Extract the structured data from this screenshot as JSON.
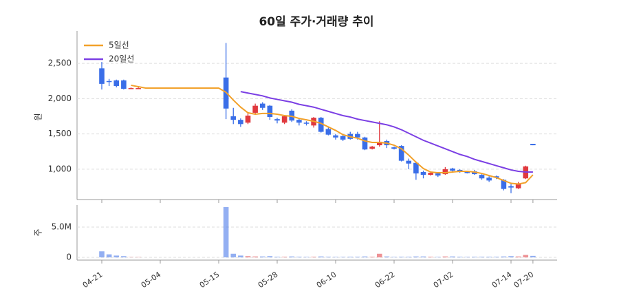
{
  "chart_data": {
    "type": "candlestick",
    "title": "60일 주가·거래량 추이",
    "categories": [
      "04-21",
      null,
      null,
      null,
      null,
      null,
      null,
      null,
      "05-04",
      null,
      null,
      null,
      null,
      null,
      null,
      null,
      "05-15",
      null,
      null,
      null,
      null,
      null,
      null,
      null,
      "05-28",
      null,
      null,
      null,
      null,
      null,
      null,
      null,
      "06-10",
      null,
      null,
      null,
      null,
      null,
      null,
      null,
      "06-22",
      null,
      null,
      null,
      null,
      null,
      null,
      null,
      "07-02",
      null,
      null,
      null,
      null,
      null,
      null,
      null,
      "07-14",
      null,
      null,
      "07-20"
    ],
    "open": [
      2430,
      2250,
      2260,
      2260,
      2150,
      2150,
      null,
      null,
      null,
      null,
      null,
      null,
      null,
      null,
      null,
      null,
      null,
      2300,
      1750,
      1700,
      1660,
      1800,
      1930,
      1900,
      1710,
      1660,
      1830,
      1700,
      1660,
      1620,
      1730,
      1570,
      1480,
      1470,
      1500,
      1500,
      1450,
      1290,
      1340,
      1400,
      1310,
      1330,
      1120,
      1090,
      960,
      920,
      940,
      930,
      1010,
      990,
      960,
      970,
      920,
      880,
      900,
      850,
      760,
      730,
      870,
      1360
    ],
    "high": [
      2520,
      2280,
      2270,
      2270,
      2160,
      2160,
      null,
      null,
      null,
      null,
      null,
      null,
      null,
      null,
      null,
      null,
      null,
      2790,
      1870,
      1720,
      1800,
      1930,
      1950,
      1910,
      1730,
      1760,
      1850,
      1730,
      1680,
      1740,
      1740,
      1600,
      1500,
      1490,
      1530,
      1530,
      1460,
      1330,
      1680,
      1420,
      1320,
      1340,
      1150,
      1110,
      980,
      970,
      960,
      1030,
      1020,
      1000,
      970,
      990,
      930,
      900,
      910,
      860,
      790,
      820,
      1050,
      1360
    ],
    "low": [
      2130,
      2180,
      2160,
      2130,
      2140,
      2140,
      null,
      null,
      null,
      null,
      null,
      null,
      null,
      null,
      null,
      null,
      null,
      1710,
      1640,
      1600,
      1640,
      1780,
      1840,
      1700,
      1650,
      1640,
      1670,
      1620,
      1620,
      1590,
      1520,
      1480,
      1420,
      1400,
      1420,
      1420,
      1270,
      1280,
      1320,
      1300,
      1280,
      1110,
      1000,
      850,
      870,
      910,
      890,
      920,
      950,
      950,
      940,
      920,
      850,
      820,
      860,
      700,
      660,
      720,
      860,
      1340
    ],
    "close": [
      2210,
      2240,
      2180,
      2140,
      2150,
      2150,
      null,
      null,
      null,
      null,
      null,
      null,
      null,
      null,
      null,
      null,
      null,
      1860,
      1700,
      1640,
      1760,
      1900,
      1870,
      1740,
      1690,
      1750,
      1690,
      1660,
      1650,
      1730,
      1530,
      1490,
      1450,
      1420,
      1430,
      1450,
      1280,
      1320,
      1390,
      1340,
      1290,
      1120,
      1080,
      940,
      920,
      950,
      910,
      1000,
      980,
      960,
      950,
      930,
      870,
      840,
      880,
      720,
      740,
      800,
      1040,
      1340
    ],
    "up_color": "#e0393e",
    "down_color": "#3a6ee8",
    "ylabel": "원",
    "ylim": [
      570,
      2960
    ],
    "yticks": [
      {
        "value": 1000,
        "label": "1,000"
      },
      {
        "value": 1500,
        "label": "1,500"
      },
      {
        "value": 2000,
        "label": "2,000"
      },
      {
        "value": 2500,
        "label": "2,500"
      }
    ],
    "grid": true,
    "lines": [
      {
        "name": "5일선",
        "color": "#f2a12a",
        "values": [
          null,
          null,
          null,
          null,
          2190,
          2170,
          2150,
          2150,
          2150,
          2150,
          2150,
          2150,
          2150,
          2150,
          2150,
          2150,
          2150,
          2090,
          1980,
          1880,
          1800,
          1780,
          1790,
          1790,
          1780,
          1760,
          1750,
          1720,
          1700,
          1680,
          1650,
          1600,
          1550,
          1490,
          1460,
          1440,
          1400,
          1380,
          1380,
          1370,
          1340,
          1290,
          1200,
          1100,
          1010,
          960,
          950,
          950,
          960,
          970,
          970,
          960,
          940,
          910,
          880,
          840,
          800,
          790,
          810,
          920
        ]
      },
      {
        "name": "20일선",
        "color": "#7b3fe4",
        "values": [
          null,
          null,
          null,
          null,
          null,
          null,
          null,
          null,
          null,
          null,
          null,
          null,
          null,
          null,
          null,
          null,
          null,
          null,
          null,
          2100,
          2080,
          2060,
          2040,
          2010,
          1990,
          1970,
          1950,
          1920,
          1900,
          1880,
          1850,
          1820,
          1790,
          1760,
          1740,
          1710,
          1690,
          1670,
          1650,
          1630,
          1600,
          1560,
          1510,
          1460,
          1410,
          1370,
          1330,
          1290,
          1250,
          1210,
          1180,
          1140,
          1110,
          1080,
          1050,
          1020,
          990,
          970,
          960,
          960
        ]
      }
    ],
    "volume": {
      "type": "bar",
      "ylabel": "주",
      "ylim": [
        -450000,
        8640000
      ],
      "yticks": [
        0,
        {
          "value": 5000000,
          "label": "5.0M"
        }
      ],
      "values": [
        1000000,
        500000,
        300000,
        200000,
        50000,
        50000,
        null,
        null,
        null,
        null,
        null,
        null,
        null,
        null,
        null,
        null,
        null,
        8300000,
        600000,
        300000,
        200000,
        150000,
        150000,
        200000,
        100000,
        100000,
        150000,
        100000,
        80000,
        100000,
        150000,
        100000,
        80000,
        80000,
        100000,
        100000,
        150000,
        100000,
        600000,
        150000,
        80000,
        100000,
        100000,
        150000,
        150000,
        100000,
        80000,
        150000,
        150000,
        100000,
        80000,
        100000,
        100000,
        100000,
        100000,
        150000,
        200000,
        150000,
        400000,
        250000
      ]
    }
  }
}
